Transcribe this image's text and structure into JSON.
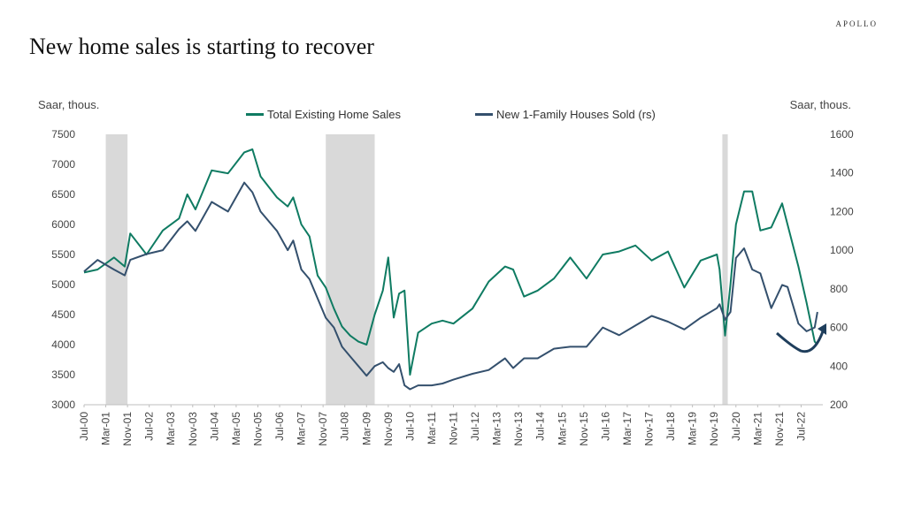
{
  "brand": "APOLLO",
  "title": "New home sales is starting to recover",
  "chart_data": {
    "type": "line",
    "left_axis_unit": "Saar, thous.",
    "right_axis_unit": "Saar, thous.",
    "ylim_left": [
      3000,
      7500
    ],
    "yticks_left": [
      3000,
      3500,
      4000,
      4500,
      5000,
      5500,
      6000,
      6500,
      7000,
      7500
    ],
    "ylim_right": [
      200,
      1600
    ],
    "yticks_right": [
      200,
      400,
      600,
      800,
      1000,
      1200,
      1400,
      1600
    ],
    "xlim": [
      "2000-07",
      "2023-03"
    ],
    "xtick_labels": [
      "Jul-00",
      "Mar-01",
      "Nov-01",
      "Jul-02",
      "Mar-03",
      "Nov-03",
      "Jul-04",
      "Mar-05",
      "Nov-05",
      "Jul-06",
      "Mar-07",
      "Nov-07",
      "Jul-08",
      "Mar-09",
      "Nov-09",
      "Jul-10",
      "Mar-11",
      "Nov-11",
      "Jul-12",
      "Mar-13",
      "Nov-13",
      "Jul-14",
      "Mar-15",
      "Nov-15",
      "Jul-16",
      "Mar-17",
      "Nov-17",
      "Jul-18",
      "Mar-19",
      "Nov-19",
      "Jul-20",
      "Mar-21",
      "Nov-21",
      "Jul-22"
    ],
    "recessions": [
      [
        "2001-03",
        "2001-11"
      ],
      [
        "2007-12",
        "2009-06"
      ],
      [
        "2020-02",
        "2020-04"
      ]
    ],
    "grid": false,
    "legend_placement": "top-center",
    "series": [
      {
        "name": "Total Existing Home Sales",
        "axis": "left",
        "color": "#0f7b62",
        "x": [
          "2000-07",
          "2000-12",
          "2001-06",
          "2001-10",
          "2001-12",
          "2002-06",
          "2002-12",
          "2003-06",
          "2003-09",
          "2003-12",
          "2004-06",
          "2004-12",
          "2005-06",
          "2005-09",
          "2005-12",
          "2006-06",
          "2006-10",
          "2006-12",
          "2007-03",
          "2007-06",
          "2007-09",
          "2007-12",
          "2008-03",
          "2008-06",
          "2008-09",
          "2008-12",
          "2009-03",
          "2009-06",
          "2009-09",
          "2009-11",
          "2010-01",
          "2010-03",
          "2010-05",
          "2010-07",
          "2010-10",
          "2011-03",
          "2011-07",
          "2011-11",
          "2012-06",
          "2012-12",
          "2013-06",
          "2013-09",
          "2014-01",
          "2014-06",
          "2014-12",
          "2015-06",
          "2015-12",
          "2016-06",
          "2016-12",
          "2017-06",
          "2017-12",
          "2018-06",
          "2018-12",
          "2019-06",
          "2019-12",
          "2020-01",
          "2020-03",
          "2020-05",
          "2020-07",
          "2020-10",
          "2021-01",
          "2021-04",
          "2021-08",
          "2021-12",
          "2022-02",
          "2022-06",
          "2022-09",
          "2022-12",
          "2023-01"
        ],
        "values": [
          5200,
          5250,
          5450,
          5300,
          5850,
          5500,
          5900,
          6100,
          6500,
          6250,
          6900,
          6850,
          7200,
          7250,
          6800,
          6450,
          6300,
          6450,
          6000,
          5800,
          5150,
          4950,
          4600,
          4300,
          4150,
          4050,
          4000,
          4500,
          4900,
          5450,
          4450,
          4850,
          4900,
          3500,
          4200,
          4350,
          4400,
          4350,
          4600,
          5050,
          5300,
          5250,
          4800,
          4900,
          5100,
          5450,
          5100,
          5500,
          5550,
          5650,
          5400,
          5550,
          4950,
          5400,
          5500,
          5250,
          4150,
          5000,
          6000,
          6550,
          6550,
          5900,
          5950,
          6350,
          6000,
          5300,
          4700,
          4050,
          4000
        ]
      },
      {
        "name": "New 1-Family Houses Sold (rs)",
        "axis": "right",
        "color": "#34506d",
        "x": [
          "2000-07",
          "2000-12",
          "2001-06",
          "2001-10",
          "2001-12",
          "2002-06",
          "2002-12",
          "2003-06",
          "2003-09",
          "2003-12",
          "2004-06",
          "2004-12",
          "2005-06",
          "2005-09",
          "2005-12",
          "2006-06",
          "2006-10",
          "2006-12",
          "2007-03",
          "2007-06",
          "2007-09",
          "2007-12",
          "2008-03",
          "2008-06",
          "2008-09",
          "2008-12",
          "2009-03",
          "2009-06",
          "2009-09",
          "2009-11",
          "2010-01",
          "2010-03",
          "2010-05",
          "2010-07",
          "2010-10",
          "2011-03",
          "2011-07",
          "2011-11",
          "2012-06",
          "2012-12",
          "2013-06",
          "2013-09",
          "2014-01",
          "2014-06",
          "2014-12",
          "2015-06",
          "2015-12",
          "2016-06",
          "2016-12",
          "2017-06",
          "2017-12",
          "2018-06",
          "2018-12",
          "2019-06",
          "2019-12",
          "2020-01",
          "2020-03",
          "2020-05",
          "2020-07",
          "2020-10",
          "2021-01",
          "2021-04",
          "2021-08",
          "2021-12",
          "2022-02",
          "2022-06",
          "2022-09",
          "2022-12",
          "2023-01"
        ],
        "values": [
          890,
          950,
          900,
          870,
          950,
          980,
          1000,
          1110,
          1150,
          1100,
          1250,
          1200,
          1350,
          1300,
          1200,
          1100,
          1000,
          1050,
          900,
          850,
          750,
          650,
          600,
          500,
          450,
          400,
          350,
          400,
          420,
          390,
          370,
          410,
          300,
          280,
          300,
          300,
          310,
          330,
          360,
          380,
          440,
          390,
          440,
          440,
          490,
          500,
          500,
          600,
          560,
          610,
          660,
          630,
          590,
          650,
          700,
          720,
          640,
          680,
          960,
          1010,
          900,
          880,
          700,
          820,
          810,
          620,
          580,
          600,
          680
        ]
      }
    ]
  }
}
